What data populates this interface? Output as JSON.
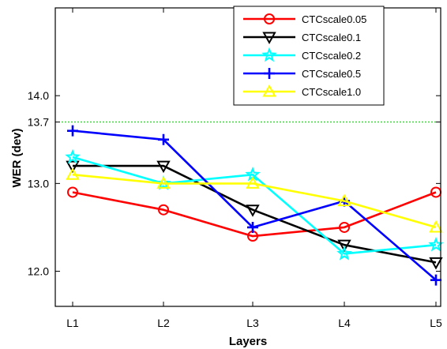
{
  "chart_data": {
    "type": "line",
    "xlabel": "Layers",
    "ylabel": "WER (dev)",
    "categories": [
      "L1",
      "L2",
      "L3",
      "L4",
      "L5"
    ],
    "ylim": [
      11.6,
      15.0
    ],
    "yticks": [
      12.0,
      13.0,
      13.7,
      14.0
    ],
    "ytick_labels": [
      "12.0",
      "13.0",
      "13.7",
      "14.0"
    ],
    "reference_line": {
      "value": 13.7,
      "color": "#00cc00",
      "style": "dotted"
    },
    "grid": false,
    "legend_position": "top-right",
    "series": [
      {
        "name": "CTCscale0.05",
        "color": "#ff0000",
        "marker": "circle",
        "values": [
          12.9,
          12.7,
          12.4,
          12.5,
          12.9
        ]
      },
      {
        "name": "CTCscale0.1",
        "color": "#000000",
        "marker": "triangle-down",
        "values": [
          13.2,
          13.2,
          12.7,
          12.3,
          12.1
        ]
      },
      {
        "name": "CTCscale0.2",
        "color": "#00ffff",
        "marker": "star",
        "values": [
          13.3,
          13.0,
          13.1,
          12.2,
          12.3
        ]
      },
      {
        "name": "CTCscale0.5",
        "color": "#0000ff",
        "marker": "plus",
        "values": [
          13.6,
          13.5,
          12.5,
          12.8,
          11.9
        ]
      },
      {
        "name": "CTCscale1.0",
        "color": "#ffff00",
        "marker": "triangle-up",
        "values": [
          13.1,
          13.0,
          13.0,
          12.8,
          12.5
        ]
      }
    ]
  }
}
